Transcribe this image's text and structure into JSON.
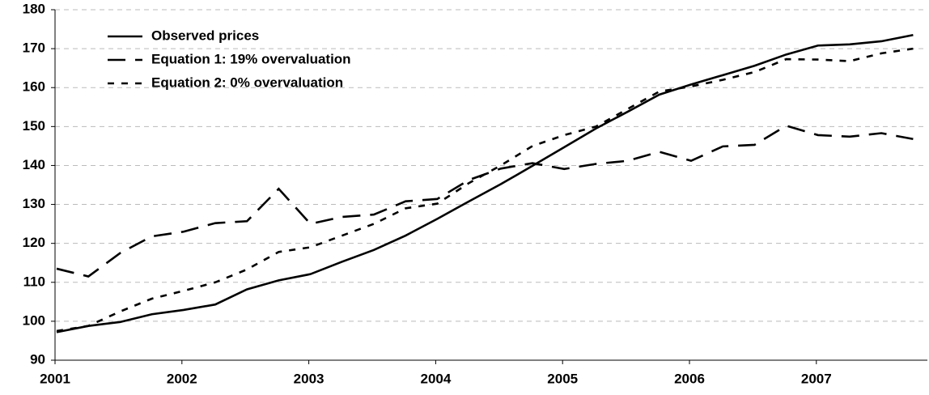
{
  "chart_data": {
    "type": "line",
    "categories": [
      "2001",
      null,
      null,
      null,
      "2002",
      null,
      null,
      null,
      "2003",
      null,
      null,
      null,
      "2004",
      null,
      null,
      null,
      "2005",
      null,
      null,
      null,
      "2006",
      null,
      null,
      null,
      "2007",
      null,
      null,
      null
    ],
    "series": [
      {
        "name": "Observed prices",
        "color": "#000000",
        "dash": "solid",
        "values": [
          97.2,
          98.8,
          99.8,
          101.8,
          102.9,
          104.3,
          108.2,
          110.5,
          112.1,
          115.3,
          118.3,
          122,
          126.3,
          130.8,
          135.2,
          139.9,
          144.7,
          149.5,
          153.8,
          158.2,
          160.8,
          163.2,
          165.6,
          168.5,
          170.8,
          171.1,
          171.9,
          173.5
        ]
      },
      {
        "name": "Equation 1: 19% overvaluation",
        "color": "#000000",
        "dash": "long",
        "values": [
          113.5,
          111.5,
          117.5,
          121.8,
          123,
          125.2,
          125.7,
          134,
          125,
          126.8,
          127.4,
          130.8,
          131.4,
          136.3,
          139.2,
          140.6,
          139.1,
          140.4,
          141.2,
          143.5,
          141.2,
          144.9,
          145.3,
          150.2,
          147.8,
          147.4,
          148.3,
          146.8
        ]
      },
      {
        "name": "Equation 2: 0% overvaluation",
        "color": "#000000",
        "dash": "short",
        "values": [
          97.5,
          98.8,
          102.5,
          105.8,
          107.8,
          110,
          113.3,
          117.8,
          119,
          122,
          125,
          129,
          130.2,
          135.5,
          140,
          145,
          147.8,
          150,
          154.5,
          159,
          160.3,
          162,
          164,
          167.3,
          167.2,
          166.8,
          168.8,
          170
        ]
      }
    ],
    "ylim": [
      90,
      180
    ],
    "yticks": [
      90,
      100,
      110,
      120,
      130,
      140,
      150,
      160,
      170,
      180
    ],
    "grid": true,
    "legend": "top-left"
  }
}
